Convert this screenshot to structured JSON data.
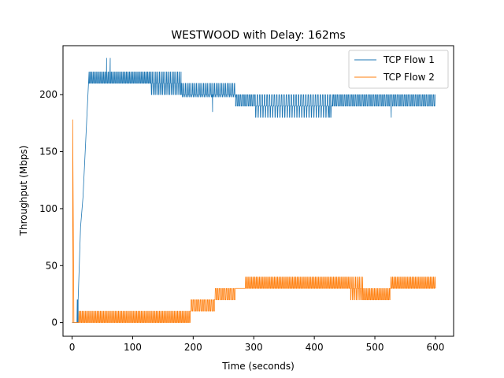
{
  "chart_data": {
    "type": "line",
    "title": "WESTWOOD with Delay: 162ms",
    "xlabel": "Time (seconds)",
    "ylabel": "Throughput (Mbps)",
    "xlim": [
      -15,
      630
    ],
    "ylim": [
      -12,
      243
    ],
    "xticks": [
      0,
      100,
      200,
      300,
      400,
      500,
      600
    ],
    "yticks": [
      0,
      50,
      100,
      150,
      200
    ],
    "grid": false,
    "legend_position": "top-right",
    "series": [
      {
        "name": "TCP Flow 1",
        "color": "#1f77b4",
        "segments": [
          {
            "x0": 0,
            "x1": 8,
            "levels": [
              0
            ],
            "period": 1
          },
          {
            "x0": 8,
            "x1": 10,
            "levels": [
              0,
              20
            ],
            "period": 1
          },
          {
            "x0": 10,
            "x1": 28,
            "levels": [
              20,
              220
            ],
            "period": 18
          },
          {
            "x0": 28,
            "x1": 130,
            "levels": [
              210,
              220
            ],
            "period": 2.5
          },
          {
            "x0": 130,
            "x1": 180,
            "levels": [
              210,
              200,
              220
            ],
            "period": 3
          },
          {
            "x0": 180,
            "x1": 270,
            "levels": [
              200,
              210,
              198
            ],
            "period": 3
          },
          {
            "x0": 270,
            "x1": 300,
            "levels": [
              190,
              200
            ],
            "period": 3
          },
          {
            "x0": 300,
            "x1": 430,
            "levels": [
              190,
              200,
              180
            ],
            "period": 4
          },
          {
            "x0": 430,
            "x1": 600,
            "levels": [
              190,
              200
            ],
            "period": 3
          }
        ],
        "spikes": [
          {
            "x": 57,
            "y": 232
          },
          {
            "x": 63,
            "y": 232
          },
          {
            "x": 14,
            "y": 84
          },
          {
            "x": 18,
            "y": 110
          },
          {
            "x": 232,
            "y": 185
          },
          {
            "x": 425,
            "y": 180
          },
          {
            "x": 527,
            "y": 180
          }
        ]
      },
      {
        "name": "TCP Flow 2",
        "color": "#ff7f0e",
        "segments": [
          {
            "x0": 0,
            "x1": 1,
            "levels": [
              0
            ],
            "period": 1
          },
          {
            "x0": 1,
            "x1": 3,
            "levels": [
              178,
              0
            ],
            "period": 2
          },
          {
            "x0": 3,
            "x1": 10,
            "levels": [
              0
            ],
            "period": 1
          },
          {
            "x0": 10,
            "x1": 195,
            "levels": [
              0,
              10
            ],
            "period": 2.5
          },
          {
            "x0": 195,
            "x1": 235,
            "levels": [
              10,
              20
            ],
            "period": 3
          },
          {
            "x0": 235,
            "x1": 270,
            "levels": [
              20,
              30
            ],
            "period": 3
          },
          {
            "x0": 270,
            "x1": 285,
            "levels": [
              30
            ],
            "period": 1
          },
          {
            "x0": 285,
            "x1": 460,
            "levels": [
              30,
              40
            ],
            "period": 2.5
          },
          {
            "x0": 460,
            "x1": 480,
            "levels": [
              20,
              30,
              40
            ],
            "period": 3
          },
          {
            "x0": 480,
            "x1": 525,
            "levels": [
              20,
              30
            ],
            "period": 2.5
          },
          {
            "x0": 525,
            "x1": 600,
            "levels": [
              30,
              40
            ],
            "period": 2.5
          }
        ],
        "spikes": []
      }
    ]
  }
}
